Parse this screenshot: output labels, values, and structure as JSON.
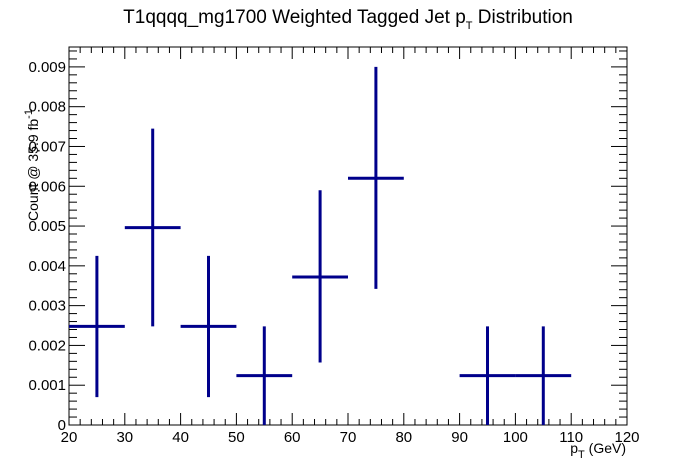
{
  "chart_data": {
    "type": "scatter",
    "title": "T1qqqq_mg1700 Weighted Tagged Jet p",
    "title_sub": "T",
    "title_suffix": " Distribution",
    "xlabel": "p",
    "xlabel_sub": "T",
    "xlabel_suffix": " (GeV)",
    "ylabel": "Count @ 35.9 fb",
    "ylabel_sup": "-1",
    "xlim": [
      20,
      120
    ],
    "ylim": [
      0,
      0.0095
    ],
    "x_ticks": [
      "20",
      "30",
      "40",
      "50",
      "60",
      "70",
      "80",
      "90",
      "100",
      "110",
      "120"
    ],
    "y_ticks": [
      "0",
      "0.001",
      "0.002",
      "0.003",
      "0.004",
      "0.005",
      "0.006",
      "0.007",
      "0.008",
      "0.009"
    ],
    "color": "#00008b",
    "points": [
      {
        "x": 25,
        "xerr": 5,
        "y": 0.00248,
        "ylow": 0.0007,
        "yhigh": 0.00425
      },
      {
        "x": 35,
        "xerr": 5,
        "y": 0.00496,
        "ylow": 0.00248,
        "yhigh": 0.00745
      },
      {
        "x": 45,
        "xerr": 5,
        "y": 0.00248,
        "ylow": 0.0007,
        "yhigh": 0.00425
      },
      {
        "x": 55,
        "xerr": 5,
        "y": 0.00124,
        "ylow": 0.0,
        "yhigh": 0.00248
      },
      {
        "x": 65,
        "xerr": 5,
        "y": 0.00372,
        "ylow": 0.00157,
        "yhigh": 0.0059
      },
      {
        "x": 75,
        "xerr": 5,
        "y": 0.0062,
        "ylow": 0.00342,
        "yhigh": 0.009
      },
      {
        "x": 95,
        "xerr": 5,
        "y": 0.00124,
        "ylow": 0.0,
        "yhigh": 0.00248
      },
      {
        "x": 105,
        "xerr": 5,
        "y": 0.00124,
        "ylow": 0.0,
        "yhigh": 0.00248
      }
    ]
  }
}
